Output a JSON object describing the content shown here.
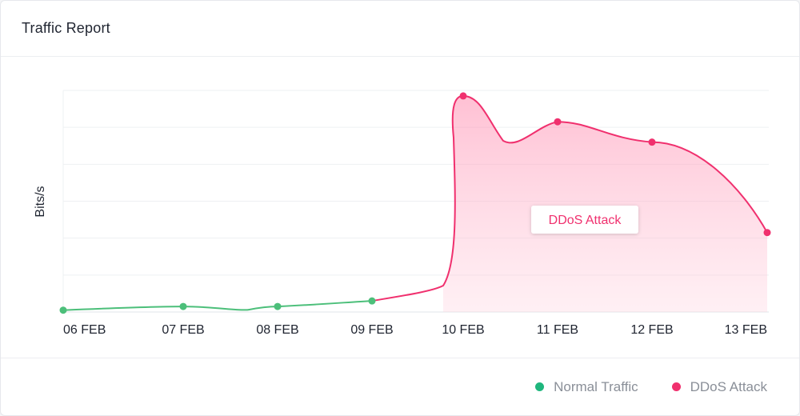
{
  "header": {
    "title": "Traffic Report"
  },
  "chart_data": {
    "type": "line",
    "categories": [
      "06 FEB",
      "07 FEB",
      "08 FEB",
      "09 FEB",
      "10 FEB",
      "11 FEB",
      "12 FEB",
      "13 FEB"
    ],
    "ylabel": "Bits/s",
    "xlabel": "",
    "grid": true,
    "legend_placement": "bottom-right",
    "series": [
      {
        "name": "Normal Traffic",
        "color": "#4cbf7a",
        "values": [
          1,
          3,
          3,
          6,
          null,
          null,
          null,
          null
        ]
      },
      {
        "name": "DDoS Attack",
        "color": "#f0306e",
        "values": [
          null,
          null,
          null,
          6,
          117,
          103,
          92,
          43
        ]
      }
    ],
    "annotation": {
      "text": "DDoS Attack"
    }
  },
  "legend": {
    "items": [
      {
        "label": "Normal Traffic",
        "color": "#1fb67d"
      },
      {
        "label": "DDoS Attack",
        "color": "#f0306e"
      }
    ]
  }
}
